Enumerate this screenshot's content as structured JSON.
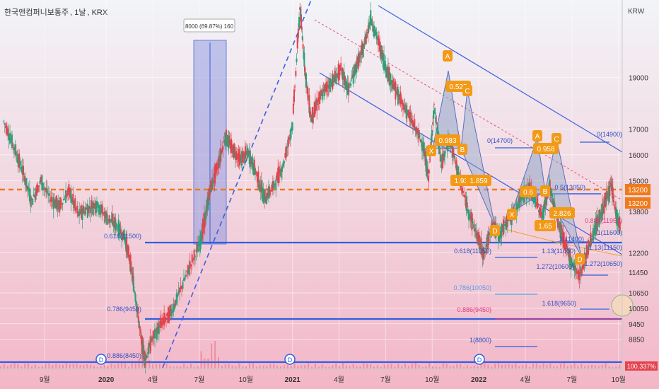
{
  "header": {
    "symbol": "한국앤컴퍼니보통주",
    "interval": "1날",
    "exchange": "KRX"
  },
  "axis": {
    "currency": "KRW"
  },
  "price_levels": {
    "current": "13200",
    "current2": "13200"
  },
  "chart_data": {
    "type": "line",
    "title": "",
    "xlabel": "",
    "ylabel": "KRW",
    "ylim": [
      7800,
      22000
    ],
    "y_ticks": [
      19000,
      17000,
      16000,
      15000,
      13800,
      12200,
      11450,
      10650,
      10050,
      9450,
      8850
    ],
    "x_ticks": [
      {
        "label": "9월",
        "t": 2019.67
      },
      {
        "label": "2020",
        "t": 2020.0
      },
      {
        "label": "4월",
        "t": 2020.25
      },
      {
        "label": "7월",
        "t": 2020.5
      },
      {
        "label": "10월",
        "t": 2020.75
      },
      {
        "label": "2021",
        "t": 2021.0
      },
      {
        "label": "4월",
        "t": 2021.25
      },
      {
        "label": "7월",
        "t": 2021.5
      },
      {
        "label": "10월",
        "t": 2021.75
      },
      {
        "label": "2022",
        "t": 2022.0
      },
      {
        "label": "4월",
        "t": 2022.25
      },
      {
        "label": "7월",
        "t": 2022.5
      },
      {
        "label": "10월",
        "t": 2022.75
      }
    ],
    "xlim": [
      2019.43,
      2022.77
    ],
    "series": [
      {
        "values": [
          [
            2019.45,
            17300
          ],
          [
            2019.5,
            16400
          ],
          [
            2019.55,
            15400
          ],
          [
            2019.6,
            14200
          ],
          [
            2019.65,
            15000
          ],
          [
            2019.7,
            14300
          ],
          [
            2019.75,
            14000
          ],
          [
            2019.8,
            14600
          ],
          [
            2019.85,
            13700
          ],
          [
            2019.9,
            13900
          ],
          [
            2019.95,
            14100
          ],
          [
            2020.0,
            13600
          ],
          [
            2020.05,
            13300
          ],
          [
            2020.1,
            12800
          ],
          [
            2020.13,
            11800
          ],
          [
            2020.16,
            10400
          ],
          [
            2020.19,
            8700
          ],
          [
            2020.21,
            8100
          ],
          [
            2020.25,
            8900
          ],
          [
            2020.3,
            9500
          ],
          [
            2020.35,
            9900
          ],
          [
            2020.4,
            10800
          ],
          [
            2020.45,
            11700
          ],
          [
            2020.5,
            12500
          ],
          [
            2020.53,
            13500
          ],
          [
            2020.56,
            14700
          ],
          [
            2020.6,
            15600
          ],
          [
            2020.64,
            16700
          ],
          [
            2020.68,
            16200
          ],
          [
            2020.72,
            15800
          ],
          [
            2020.76,
            16100
          ],
          [
            2020.8,
            15400
          ],
          [
            2020.85,
            14300
          ],
          [
            2020.9,
            14800
          ],
          [
            2020.95,
            15600
          ],
          [
            2021.0,
            17200
          ],
          [
            2021.04,
            21700
          ],
          [
            2021.07,
            19100
          ],
          [
            2021.1,
            17400
          ],
          [
            2021.14,
            18100
          ],
          [
            2021.18,
            18600
          ],
          [
            2021.22,
            18900
          ],
          [
            2021.26,
            19300
          ],
          [
            2021.3,
            18500
          ],
          [
            2021.34,
            19400
          ],
          [
            2021.38,
            20100
          ],
          [
            2021.42,
            21300
          ],
          [
            2021.46,
            20400
          ],
          [
            2021.5,
            19400
          ],
          [
            2021.54,
            18700
          ],
          [
            2021.58,
            18100
          ],
          [
            2021.62,
            17600
          ],
          [
            2021.66,
            17000
          ],
          [
            2021.7,
            16400
          ],
          [
            2021.73,
            15100
          ],
          [
            2021.76,
            17900
          ],
          [
            2021.8,
            15600
          ],
          [
            2021.84,
            16600
          ],
          [
            2021.88,
            15600
          ],
          [
            2021.92,
            14400
          ],
          [
            2021.96,
            13500
          ],
          [
            2022.0,
            12700
          ],
          [
            2022.03,
            12100
          ],
          [
            2022.07,
            13300
          ],
          [
            2022.11,
            12900
          ],
          [
            2022.15,
            13400
          ],
          [
            2022.19,
            13700
          ],
          [
            2022.23,
            14400
          ],
          [
            2022.27,
            14700
          ],
          [
            2022.3,
            14300
          ],
          [
            2022.34,
            13600
          ],
          [
            2022.38,
            14800
          ],
          [
            2022.42,
            13500
          ],
          [
            2022.46,
            12600
          ],
          [
            2022.5,
            11800
          ],
          [
            2022.54,
            11300
          ],
          [
            2022.57,
            12000
          ],
          [
            2022.61,
            12900
          ],
          [
            2022.65,
            13600
          ],
          [
            2022.68,
            14200
          ],
          [
            2022.71,
            14800
          ],
          [
            2022.74,
            13600
          ],
          [
            2022.76,
            13200
          ]
        ]
      }
    ],
    "annotations": [
      {
        "label": "8000 (69.87%) 160"
      },
      {
        "label": "0.618(11500)"
      },
      {
        "label": "0.786(9450)"
      },
      {
        "label": "0.886(8450)"
      },
      {
        "label": "0.618(11050)"
      },
      {
        "label": "0.786(10050)"
      },
      {
        "label": "0.886(9450)"
      },
      {
        "label": "1(8800)"
      },
      {
        "label": "0(14700)"
      },
      {
        "label": "0.5(13050)"
      },
      {
        "label": "1(11400)"
      },
      {
        "label": "1.13(11000)"
      },
      {
        "label": "1.272(10600)"
      },
      {
        "label": "0(14900)"
      },
      {
        "label": "0.886(11950)"
      },
      {
        "label": "1(11600)"
      },
      {
        "label": "1.13(11150)"
      },
      {
        "label": "1.272(10650)"
      },
      {
        "label": "1.618(9650)"
      },
      {
        "label": "A"
      },
      {
        "label": "0.525"
      },
      {
        "label": "C"
      },
      {
        "label": "X"
      },
      {
        "label": "0.983"
      },
      {
        "label": "B"
      },
      {
        "label": "1.933"
      },
      {
        "label": "1.859"
      },
      {
        "label": "D"
      },
      {
        "label": "X"
      },
      {
        "label": "0.6"
      },
      {
        "label": "A"
      },
      {
        "label": "0.958"
      },
      {
        "label": "C"
      },
      {
        "label": "B"
      },
      {
        "label": "2.826"
      },
      {
        "label": "1.65"
      },
      {
        "label": "D"
      },
      {
        "label": "D"
      },
      {
        "label": "D"
      },
      {
        "label": "D"
      },
      {
        "label": "100.337%"
      }
    ]
  }
}
